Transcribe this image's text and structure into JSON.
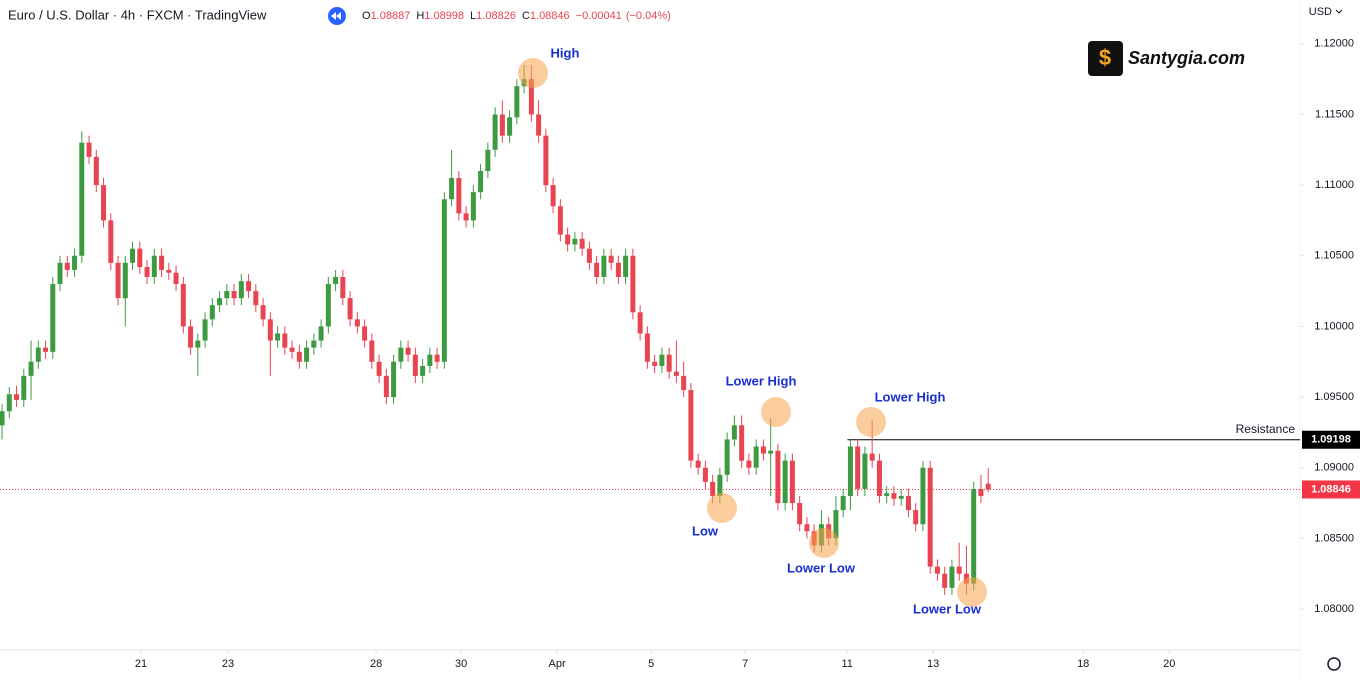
{
  "header": {
    "title": "Euro / U.S. Dollar · 4h · FXCM · TradingView",
    "ohlc_letters": [
      "O",
      "H",
      "L",
      "C"
    ],
    "change": "−0.00041",
    "change_pct": "(−0.04%)",
    "currency": "USD"
  },
  "watermark": "Santygia.com",
  "chart_data": {
    "type": "candlestick",
    "up_color": "#3e9a41",
    "down_color": "#e84452",
    "ohlc": [
      [
        1.093,
        1.0945,
        1.092,
        1.094
      ],
      [
        1.094,
        1.0957,
        1.0935,
        1.0952
      ],
      [
        1.0952,
        1.0958,
        1.0943,
        1.0948
      ],
      [
        1.0948,
        1.097,
        1.0943,
        1.0965
      ],
      [
        1.0965,
        1.099,
        1.0948,
        1.0975
      ],
      [
        1.0975,
        1.099,
        1.097,
        1.0985
      ],
      [
        1.0985,
        1.099,
        1.0977,
        1.0982
      ],
      [
        1.0982,
        1.1035,
        1.0977,
        1.103
      ],
      [
        1.103,
        1.105,
        1.1025,
        1.1045
      ],
      [
        1.1045,
        1.105,
        1.1035,
        1.104
      ],
      [
        1.104,
        1.1055,
        1.1035,
        1.105
      ],
      [
        1.105,
        1.1138,
        1.1045,
        1.113
      ],
      [
        1.113,
        1.1135,
        1.1115,
        1.112
      ],
      [
        1.112,
        1.1125,
        1.1095,
        1.11
      ],
      [
        1.11,
        1.1105,
        1.107,
        1.1075
      ],
      [
        1.1075,
        1.108,
        1.104,
        1.1045
      ],
      [
        1.1045,
        1.105,
        1.1015,
        1.102
      ],
      [
        1.102,
        1.105,
        1.1,
        1.1045
      ],
      [
        1.1045,
        1.106,
        1.104,
        1.1055
      ],
      [
        1.1055,
        1.106,
        1.1037,
        1.1042
      ],
      [
        1.1042,
        1.1047,
        1.103,
        1.1035
      ],
      [
        1.1035,
        1.1055,
        1.103,
        1.105
      ],
      [
        1.105,
        1.1055,
        1.1035,
        1.104
      ],
      [
        1.104,
        1.1045,
        1.1033,
        1.1038
      ],
      [
        1.1038,
        1.1043,
        1.1025,
        1.103
      ],
      [
        1.103,
        1.1035,
        1.0995,
        1.1
      ],
      [
        1.1,
        1.1005,
        1.098,
        1.0985
      ],
      [
        1.0985,
        1.0995,
        1.0965,
        1.099
      ],
      [
        1.099,
        1.101,
        1.0985,
        1.1005
      ],
      [
        1.1005,
        1.102,
        1.1,
        1.1015
      ],
      [
        1.1015,
        1.1025,
        1.101,
        1.102
      ],
      [
        1.102,
        1.103,
        1.1015,
        1.1025
      ],
      [
        1.1025,
        1.103,
        1.1015,
        1.102
      ],
      [
        1.102,
        1.1037,
        1.1015,
        1.1032
      ],
      [
        1.1032,
        1.1037,
        1.102,
        1.1025
      ],
      [
        1.1025,
        1.103,
        1.101,
        1.1015
      ],
      [
        1.1015,
        1.102,
        1.1,
        1.1005
      ],
      [
        1.1005,
        1.101,
        1.0965,
        1.099
      ],
      [
        1.099,
        1.1,
        1.0985,
        1.0995
      ],
      [
        1.0995,
        1.1,
        1.098,
        1.0985
      ],
      [
        1.0985,
        1.099,
        1.0977,
        1.0982
      ],
      [
        1.0982,
        1.0987,
        1.097,
        1.0975
      ],
      [
        1.0975,
        1.099,
        1.097,
        1.0985
      ],
      [
        1.0985,
        1.0995,
        1.098,
        1.099
      ],
      [
        1.099,
        1.1005,
        1.0985,
        1.1
      ],
      [
        1.1,
        1.1035,
        1.0995,
        1.103
      ],
      [
        1.103,
        1.104,
        1.1025,
        1.1035
      ],
      [
        1.1035,
        1.104,
        1.1015,
        1.102
      ],
      [
        1.102,
        1.1025,
        1.1,
        1.1005
      ],
      [
        1.1005,
        1.101,
        1.0995,
        1.1
      ],
      [
        1.1,
        1.1005,
        1.0985,
        1.099
      ],
      [
        1.099,
        1.0995,
        1.097,
        1.0975
      ],
      [
        1.0975,
        1.098,
        1.096,
        1.0965
      ],
      [
        1.0965,
        1.097,
        1.0945,
        1.095
      ],
      [
        1.095,
        1.098,
        1.0945,
        1.0975
      ],
      [
        1.0975,
        1.099,
        1.097,
        1.0985
      ],
      [
        1.0985,
        1.099,
        1.0975,
        1.098
      ],
      [
        1.098,
        1.0985,
        1.096,
        1.0965
      ],
      [
        1.0965,
        1.0977,
        1.096,
        1.0972
      ],
      [
        1.0972,
        1.0985,
        1.0967,
        1.098
      ],
      [
        1.098,
        1.0985,
        1.097,
        1.0975
      ],
      [
        1.0975,
        1.1095,
        1.097,
        1.109
      ],
      [
        1.109,
        1.1125,
        1.1085,
        1.1105
      ],
      [
        1.1105,
        1.111,
        1.1075,
        1.108
      ],
      [
        1.108,
        1.1085,
        1.107,
        1.1075
      ],
      [
        1.1075,
        1.11,
        1.107,
        1.1095
      ],
      [
        1.1095,
        1.1115,
        1.109,
        1.111
      ],
      [
        1.111,
        1.113,
        1.1105,
        1.1125
      ],
      [
        1.1125,
        1.1155,
        1.112,
        1.115
      ],
      [
        1.115,
        1.116,
        1.113,
        1.1135
      ],
      [
        1.1135,
        1.1153,
        1.113,
        1.1148
      ],
      [
        1.1148,
        1.1175,
        1.1143,
        1.117
      ],
      [
        1.117,
        1.1185,
        1.1165,
        1.1175
      ],
      [
        1.1175,
        1.1185,
        1.1145,
        1.115
      ],
      [
        1.115,
        1.116,
        1.113,
        1.1135
      ],
      [
        1.1135,
        1.114,
        1.1095,
        1.11
      ],
      [
        1.11,
        1.1105,
        1.108,
        1.1085
      ],
      [
        1.1085,
        1.109,
        1.106,
        1.1065
      ],
      [
        1.1065,
        1.107,
        1.1053,
        1.1058
      ],
      [
        1.1058,
        1.1067,
        1.1053,
        1.1062
      ],
      [
        1.1062,
        1.1067,
        1.105,
        1.1055
      ],
      [
        1.1055,
        1.106,
        1.104,
        1.1045
      ],
      [
        1.1045,
        1.105,
        1.103,
        1.1035
      ],
      [
        1.1035,
        1.1055,
        1.103,
        1.105
      ],
      [
        1.105,
        1.1055,
        1.104,
        1.1045
      ],
      [
        1.1045,
        1.105,
        1.103,
        1.1035
      ],
      [
        1.1035,
        1.1055,
        1.103,
        1.105
      ],
      [
        1.105,
        1.1055,
        1.1005,
        1.101
      ],
      [
        1.101,
        1.1015,
        1.099,
        1.0995
      ],
      [
        1.0995,
        1.1,
        1.097,
        1.0975
      ],
      [
        1.0975,
        1.098,
        1.0967,
        1.0972
      ],
      [
        1.0972,
        1.0985,
        1.0967,
        1.098
      ],
      [
        1.098,
        1.0985,
        1.0963,
        1.0968
      ],
      [
        1.0968,
        1.099,
        1.096,
        1.0965
      ],
      [
        1.0965,
        1.0975,
        1.095,
        1.0955
      ],
      [
        1.0955,
        1.096,
        1.09,
        1.0905
      ],
      [
        1.0905,
        1.091,
        1.0895,
        1.09
      ],
      [
        1.09,
        1.0905,
        1.0885,
        1.089
      ],
      [
        1.089,
        1.0895,
        1.0875,
        1.088
      ],
      [
        1.088,
        1.09,
        1.0875,
        1.0895
      ],
      [
        1.0895,
        1.0925,
        1.089,
        1.092
      ],
      [
        1.092,
        1.0937,
        1.0915,
        1.093
      ],
      [
        1.093,
        1.0937,
        1.09,
        1.0905
      ],
      [
        1.0905,
        1.091,
        1.0895,
        1.09
      ],
      [
        1.09,
        1.092,
        1.0895,
        1.0915
      ],
      [
        1.0915,
        1.092,
        1.0905,
        1.091
      ],
      [
        1.091,
        1.0935,
        1.088,
        1.0912
      ],
      [
        1.0912,
        1.0917,
        1.087,
        1.0875
      ],
      [
        1.0875,
        1.091,
        1.087,
        1.0905
      ],
      [
        1.0905,
        1.091,
        1.087,
        1.0875
      ],
      [
        1.0875,
        1.088,
        1.0855,
        1.086
      ],
      [
        1.086,
        1.0865,
        1.085,
        1.0855
      ],
      [
        1.0855,
        1.086,
        1.084,
        1.0845
      ],
      [
        1.0845,
        1.087,
        1.084,
        1.086
      ],
      [
        1.086,
        1.0865,
        1.0845,
        1.085
      ],
      [
        1.085,
        1.088,
        1.0845,
        1.087
      ],
      [
        1.087,
        1.0885,
        1.0865,
        1.088
      ],
      [
        1.088,
        1.092,
        1.087,
        1.0915
      ],
      [
        1.0915,
        1.092,
        1.088,
        1.0885
      ],
      [
        1.0885,
        1.0915,
        1.088,
        1.091
      ],
      [
        1.091,
        1.0934,
        1.09,
        1.0905
      ],
      [
        1.0905,
        1.091,
        1.0875,
        1.088
      ],
      [
        1.088,
        1.0887,
        1.0875,
        1.0882
      ],
      [
        1.0882,
        1.0887,
        1.0873,
        1.0878
      ],
      [
        1.0878,
        1.0885,
        1.0873,
        1.088
      ],
      [
        1.088,
        1.0885,
        1.0865,
        1.087
      ],
      [
        1.087,
        1.0875,
        1.0855,
        1.086
      ],
      [
        1.086,
        1.0905,
        1.0855,
        1.09
      ],
      [
        1.09,
        1.0905,
        1.0825,
        1.083
      ],
      [
        1.083,
        1.0835,
        1.082,
        1.0825
      ],
      [
        1.0825,
        1.083,
        1.081,
        1.0815
      ],
      [
        1.0815,
        1.0835,
        1.081,
        1.083
      ],
      [
        1.083,
        1.0847,
        1.082,
        1.0825
      ],
      [
        1.0825,
        1.0845,
        1.081,
        1.0818
      ],
      [
        1.0818,
        1.089,
        1.0813,
        1.0885
      ],
      [
        1.0885,
        1.0895,
        1.0875,
        1.088
      ],
      [
        1.08887,
        1.08998,
        1.08826,
        1.08846
      ]
    ],
    "ylim": [
      1.0771,
      1.1231
    ],
    "yticks": [
      {
        "value": 1.08,
        "label": "1.08000"
      },
      {
        "value": 1.085,
        "label": "1.08500"
      },
      {
        "value": 1.09,
        "label": "1.09000"
      },
      {
        "value": 1.095,
        "label": "1.09500"
      },
      {
        "value": 1.1,
        "label": "1.10000"
      },
      {
        "value": 1.105,
        "label": "1.10500"
      },
      {
        "value": 1.11,
        "label": "1.11000"
      },
      {
        "value": 1.115,
        "label": "1.11500"
      },
      {
        "value": 1.12,
        "label": "1.12000"
      }
    ],
    "xlim": [
      -0.28,
      179
    ],
    "xticks": [
      {
        "value": 19.17,
        "label": "21"
      },
      {
        "value": 31.17,
        "label": "23"
      },
      {
        "value": 51.59,
        "label": "28"
      },
      {
        "value": 63.31,
        "label": "30"
      },
      {
        "value": 76.55,
        "label": "Apr"
      },
      {
        "value": 89.52,
        "label": "5"
      },
      {
        "value": 102.48,
        "label": "7"
      },
      {
        "value": 116.55,
        "label": "11"
      },
      {
        "value": 128.41,
        "label": "13"
      },
      {
        "value": 149.1,
        "label": "18"
      },
      {
        "value": 160.97,
        "label": "20"
      }
    ],
    "annotations": [
      "High",
      "Lower High",
      "Low",
      "Lower Low",
      "Lower High",
      "Lower Low"
    ],
    "resistance": {
      "label": "Resistance",
      "value": 1.09198
    },
    "last_price_color": "#f23645"
  }
}
